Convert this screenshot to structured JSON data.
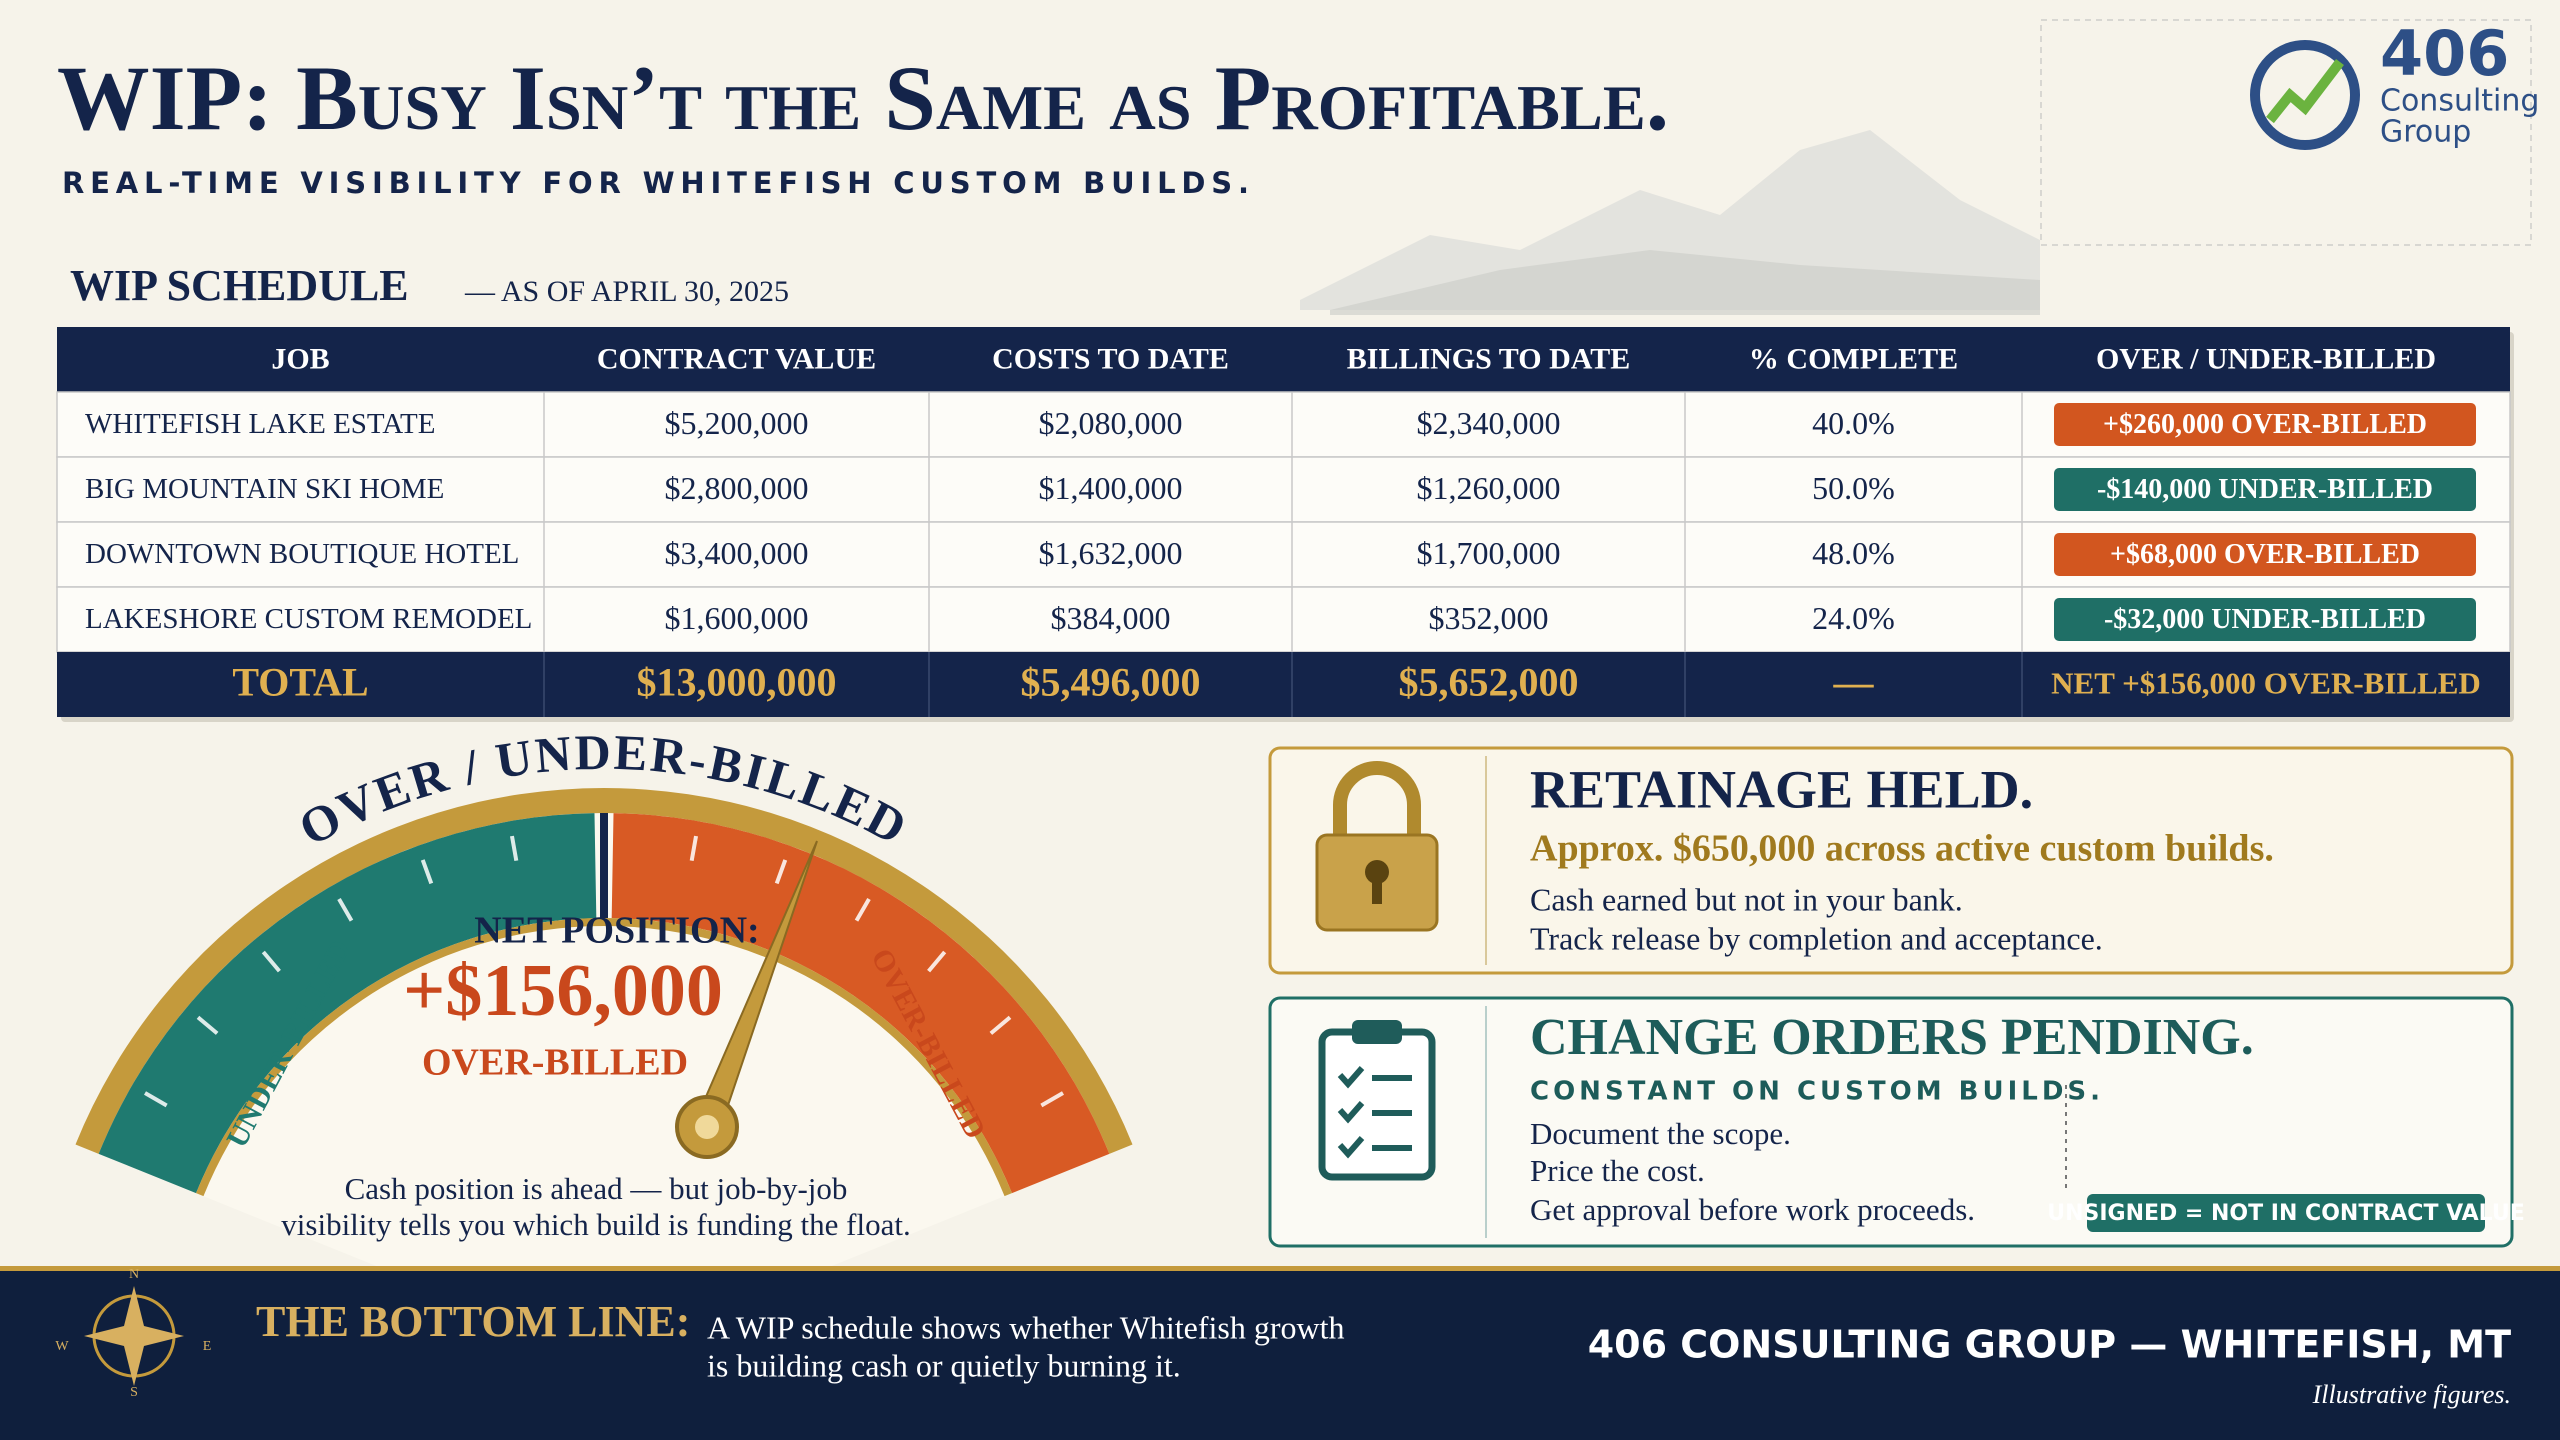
{
  "header": {
    "title": "WIP: Busy Isn’t the Same as Profitable.",
    "subtitle": "REAL-TIME VISIBILITY FOR WHITEFISH CUSTOM BUILDS."
  },
  "logo": {
    "number": "406",
    "name_lines": [
      "Consulting",
      "Group"
    ]
  },
  "schedule": {
    "title": "WIP SCHEDULE",
    "as_of": "— AS OF APRIL 30, 2025",
    "columns": [
      "JOB",
      "CONTRACT VALUE",
      "COSTS TO DATE",
      "BILLINGS TO DATE",
      "% COMPLETE",
      "OVER / UNDER-BILLED"
    ],
    "rows": [
      [
        "WHITEFISH LAKE ESTATE",
        "$5,200,000",
        "$2,080,000",
        "$2,340,000",
        "40.0%",
        {
          "text": "+$260,000 OVER-BILLED",
          "color": "#d2561f"
        }
      ],
      [
        "BIG MOUNTAIN SKI HOME",
        "$2,800,000",
        "$1,400,000",
        "$1,260,000",
        "50.0%",
        {
          "text": "-$140,000 UNDER-BILLED",
          "color": "#1f6f66"
        }
      ],
      [
        "DOWNTOWN BOUTIQUE HOTEL",
        "$3,400,000",
        "$1,632,000",
        "$1,700,000",
        "48.0%",
        {
          "text": "+$68,000 OVER-BILLED",
          "color": "#d2561f"
        }
      ],
      [
        "LAKESHORE CUSTOM REMODEL",
        "$1,600,000",
        "$384,000",
        "$352,000",
        "24.0%",
        {
          "text": "-$32,000 UNDER-BILLED",
          "color": "#1f6f66"
        }
      ]
    ],
    "total": [
      "TOTAL",
      "$13,000,000",
      "$5,496,000",
      "$5,652,000",
      "—",
      "NET +$156,000 OVER-BILLED"
    ]
  },
  "gauge": {
    "title": "OVER / UNDER-BILLED",
    "left_label": "UNDER-BILLED",
    "right_label": "OVER-BILLED",
    "net_label": "NET POSITION:",
    "net_value": "+$156,000",
    "net_status": "OVER-BILLED",
    "caption": [
      "Cash position is ahead — but job-by-job",
      "visibility tells you which build is funding the float."
    ]
  },
  "retainage": {
    "title": "RETAINAGE HELD.",
    "highlight": "Approx. $650,000 across active custom builds.",
    "lines": [
      "Cash earned but not in your bank.",
      "Track release by completion and acceptance."
    ]
  },
  "change_orders": {
    "title": "CHANGE ORDERS PENDING.",
    "subtitle": "CONSTANT ON CUSTOM BUILDS.",
    "lines": [
      "Document the scope.",
      "Price the cost.",
      "Get approval before work proceeds."
    ],
    "badge": "UNSIGNED = NOT IN CONTRACT VALUE"
  },
  "footer": {
    "compass": [
      "N",
      "E",
      "S",
      "W"
    ],
    "label": "THE BOTTOM LINE:",
    "text": [
      "A WIP schedule shows whether Whitefish growth",
      "is building cash or quietly burning it."
    ],
    "brand": "406 CONSULTING GROUP — WHITEFISH, MT",
    "note": "Illustrative figures."
  }
}
